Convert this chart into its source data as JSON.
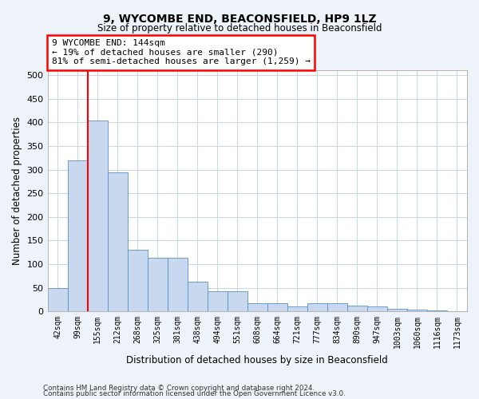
{
  "title": "9, WYCOMBE END, BEACONSFIELD, HP9 1LZ",
  "subtitle": "Size of property relative to detached houses in Beaconsfield",
  "xlabel": "Distribution of detached houses by size in Beaconsfield",
  "ylabel": "Number of detached properties",
  "footer_line1": "Contains HM Land Registry data © Crown copyright and database right 2024.",
  "footer_line2": "Contains public sector information licensed under the Open Government Licence v3.0.",
  "bin_labels": [
    "42sqm",
    "99sqm",
    "155sqm",
    "212sqm",
    "268sqm",
    "325sqm",
    "381sqm",
    "438sqm",
    "494sqm",
    "551sqm",
    "608sqm",
    "664sqm",
    "721sqm",
    "777sqm",
    "834sqm",
    "890sqm",
    "947sqm",
    "1003sqm",
    "1060sqm",
    "1116sqm",
    "1173sqm"
  ],
  "bar_heights": [
    50,
    320,
    405,
    295,
    130,
    113,
    113,
    62,
    42,
    42,
    18,
    18,
    10,
    18,
    18,
    12,
    10,
    6,
    3,
    2,
    1
  ],
  "bar_color": "#c8d8ef",
  "bar_edge_color": "#5b8fc9",
  "grid_color": "#c8d4e8",
  "property_line_x": 1.5,
  "annotation_text_line1": "9 WYCOMBE END: 144sqm",
  "annotation_text_line2": "← 19% of detached houses are smaller (290)",
  "annotation_text_line3": "81% of semi-detached houses are larger (1,259) →",
  "ylim": [
    0,
    510
  ],
  "yticks": [
    0,
    50,
    100,
    150,
    200,
    250,
    300,
    350,
    400,
    450,
    500
  ],
  "background_color": "#eef2f9",
  "plot_bg_color": "#ffffff"
}
